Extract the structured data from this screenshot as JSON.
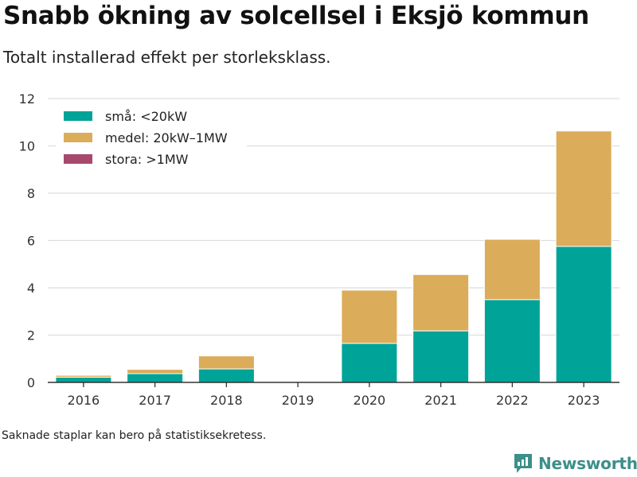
{
  "header": {
    "title": "Snabb ökning av solcellsel i Eksjö kommun",
    "subtitle": "Totalt installerad effekt per storleksklass."
  },
  "footer": {
    "note": "Saknade staplar kan bero på statistiksekretess.",
    "brand": "Newsworthy"
  },
  "colors": {
    "small": "#00a398",
    "medium": "#dbac5a",
    "large": "#a6496c",
    "grid": "#dddddd",
    "axis": "#333333",
    "brand": "#3d8f8a"
  },
  "chart_data": {
    "type": "bar",
    "stacked": true,
    "categories": [
      "2016",
      "2017",
      "2018",
      "2019",
      "2020",
      "2021",
      "2022",
      "2023"
    ],
    "series": [
      {
        "name": "små: <20kW",
        "color": "#00a398",
        "values": [
          0.22,
          0.37,
          0.57,
          null,
          1.65,
          2.18,
          3.5,
          5.75
        ]
      },
      {
        "name": "medel: 20kW–1MW",
        "color": "#dbac5a",
        "values": [
          0.08,
          0.18,
          0.55,
          null,
          2.25,
          2.38,
          2.55,
          4.88
        ]
      },
      {
        "name": "stora: >1MW",
        "color": "#a6496c",
        "values": [
          0,
          0,
          0,
          null,
          0,
          0,
          0,
          0
        ]
      }
    ],
    "ylim": [
      0,
      12
    ],
    "yticks": [
      0,
      2,
      4,
      6,
      8,
      10,
      12
    ],
    "grid": true,
    "legend": "top-left",
    "xlabel": "",
    "ylabel": ""
  }
}
